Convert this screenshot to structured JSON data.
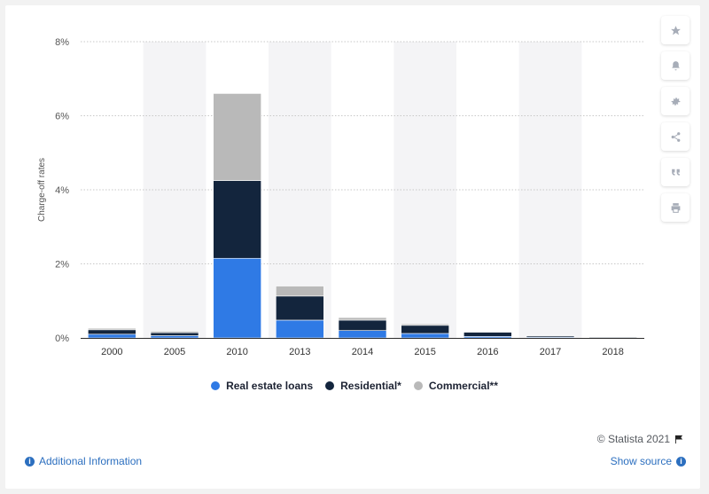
{
  "chart_data": {
    "type": "bar",
    "stacked": true,
    "categories": [
      "2000",
      "2005",
      "2010",
      "2013",
      "2014",
      "2015",
      "2016",
      "2017",
      "2018"
    ],
    "series": [
      {
        "name": "Real estate loans",
        "color": "#2f7ae5",
        "values": [
          0.1,
          0.06,
          2.15,
          0.48,
          0.2,
          0.12,
          0.04,
          0.02,
          0.01
        ]
      },
      {
        "name": "Residential*",
        "color": "#13253d",
        "values": [
          0.12,
          0.08,
          2.1,
          0.65,
          0.28,
          0.22,
          0.12,
          0.04,
          0.01
        ]
      },
      {
        "name": "Commercial**",
        "color": "#b9b9b9",
        "values": [
          0.04,
          0.04,
          2.35,
          0.27,
          0.07,
          0.04,
          0.01,
          0.01,
          0.0
        ]
      }
    ],
    "ylabel": "Charge-off rates",
    "xlabel": "",
    "ylim": [
      0,
      8
    ],
    "yticks": [
      "0%",
      "2%",
      "4%",
      "6%",
      "8%"
    ],
    "ytick_values": [
      0,
      2,
      4,
      6,
      8
    ],
    "grid": true,
    "legend_position": "bottom"
  },
  "toolbar": {
    "icons": [
      "star-icon",
      "bell-icon",
      "gear-icon",
      "share-icon",
      "quote-icon",
      "print-icon"
    ]
  },
  "footer": {
    "credit": "© Statista 2021",
    "additional_info": "Additional Information",
    "show_source": "Show source"
  }
}
